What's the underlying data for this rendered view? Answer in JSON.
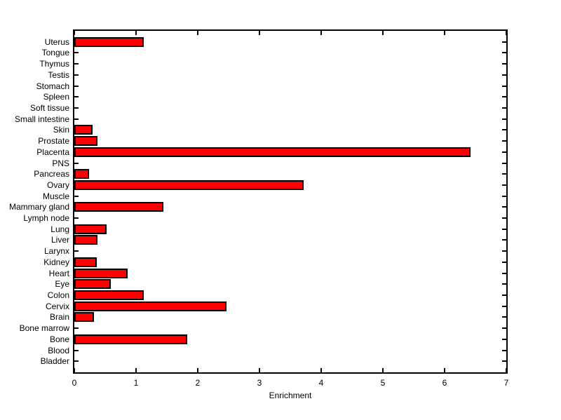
{
  "figure": {
    "background": "#ffffff",
    "bar_fill": "#ff0000",
    "bar_border": "#000000",
    "axis_color": "#000000",
    "text_color": "#000000"
  },
  "chart_data": {
    "type": "bar",
    "orientation": "horizontal",
    "title": "",
    "xlabel": "Enrichment",
    "ylabel": "",
    "xlim": [
      0,
      7
    ],
    "x_ticks": [
      0,
      1,
      2,
      3,
      4,
      5,
      6,
      7
    ],
    "grid": false,
    "legend": null,
    "categories": [
      "Uterus",
      "Tongue",
      "Thymus",
      "Testis",
      "Stomach",
      "Spleen",
      "Soft tissue",
      "Small intestine",
      "Skin",
      "Prostate",
      "Placenta",
      "PNS",
      "Pancreas",
      "Ovary",
      "Muscle",
      "Mammary gland",
      "Lymph node",
      "Lung",
      "Liver",
      "Larynx",
      "Kidney",
      "Heart",
      "Eye",
      "Colon",
      "Cervix",
      "Brain",
      "Bone marrow",
      "Bone",
      "Blood",
      "Bladder"
    ],
    "values": [
      1.12,
      0,
      0,
      0,
      0,
      0,
      0,
      0,
      0.29,
      0.37,
      6.42,
      0,
      0.24,
      3.72,
      0,
      1.44,
      0,
      0.52,
      0.38,
      0,
      0.36,
      0.86,
      0.59,
      1.12,
      2.47,
      0.32,
      0,
      1.83,
      0,
      0
    ]
  }
}
